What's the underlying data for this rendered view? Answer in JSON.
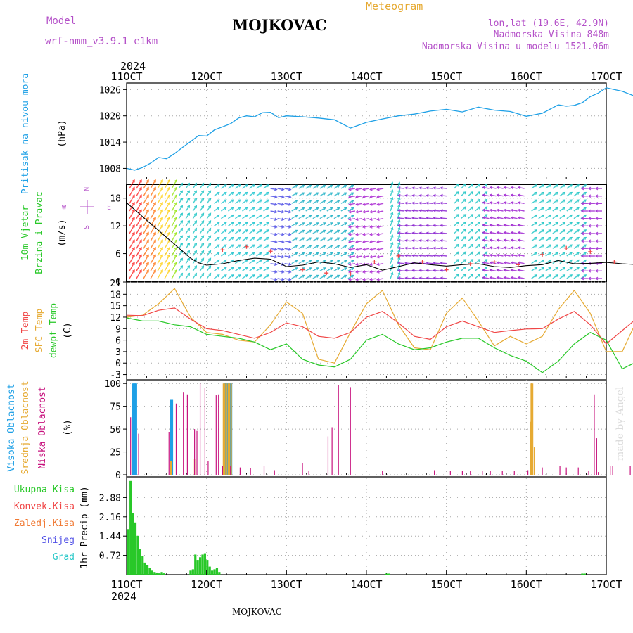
{
  "header": {
    "model_label": "Model",
    "model_name": "wrf-nmm_v3.9.1 e1km",
    "location": "MOJKOVAC",
    "meteogram": "Meteogram",
    "coords": "lon,lat (19.6E, 42.9N)",
    "elevation": "Nadmorska Visina 848m",
    "model_elevation": "Nadmorska Visina u modelu 1521.06m",
    "year_top": "2024",
    "year_bottom": "2024",
    "footer_location": "MOJKOVAC",
    "credit": "made by Angel"
  },
  "colors": {
    "pressure": "#1ea0e6",
    "temp2m": "#f04646",
    "sfc": "#e6aa32",
    "dew": "#28c828",
    "high_cloud": "#1ea0e6",
    "mid_cloud": "#e6aa32",
    "low_cloud": "#c8147f",
    "total_precip": "#28c828",
    "conv_precip": "#f04646",
    "frz_precip": "#f07832",
    "snow": "#5050e6",
    "hail": "#28c8c8",
    "compass": "#b450c8",
    "wind_speed_line": "#000000",
    "gust": "#f04646"
  },
  "chart_data": [
    {
      "id": "pressure",
      "type": "line",
      "ylabel_lines": [
        "Pritisak na nivou mora",
        "(hPa)"
      ],
      "x_categories": [
        "11OCT",
        "12OCT",
        "13OCT",
        "14OCT",
        "15OCT",
        "16OCT",
        "17OCT"
      ],
      "yticks": [
        1008,
        1014,
        1020,
        1026
      ],
      "ylim": [
        1005.5,
        1027.5
      ],
      "grid": true,
      "series": [
        {
          "x": [
            0,
            0.1,
            0.2,
            0.3,
            0.4,
            0.5,
            0.6,
            0.7,
            0.8,
            0.9,
            1.0,
            1.1,
            1.2,
            1.3,
            1.4,
            1.5,
            1.6,
            1.7,
            1.8,
            1.9,
            2.0,
            2.2,
            2.4,
            2.6,
            2.8,
            3.0,
            3.2,
            3.4,
            3.6,
            3.8,
            4.0,
            4.2,
            4.4,
            4.6,
            4.8,
            5.0,
            5.2,
            5.4,
            5.5,
            5.6,
            5.7,
            5.8,
            5.9,
            6.0,
            6.2,
            6.4,
            6.6,
            6.8,
            7.0
          ],
          "y": [
            1008,
            1007.6,
            1008.2,
            1009.2,
            1010.5,
            1010.2,
            1011.4,
            1012.8,
            1014.1,
            1015.5,
            1015.4,
            1016.8,
            1017.5,
            1018.2,
            1019.5,
            1020.0,
            1019.8,
            1020.7,
            1020.8,
            1019.6,
            1020.0,
            1019.8,
            1019.5,
            1019.1,
            1017.2,
            1018.5,
            1019.3,
            1020.0,
            1020.4,
            1021.1,
            1021.5,
            1020.9,
            1022.0,
            1021.3,
            1021.0,
            1019.9,
            1020.6,
            1022.5,
            1022.2,
            1022.4,
            1023.0,
            1024.4,
            1025.2,
            1026.4,
            1025.6,
            1024.2,
            1025.4,
            1025.5,
            1025.0
          ]
        }
      ]
    },
    {
      "id": "wind",
      "type": "line",
      "ylabel_lines": [
        "10m Vjetar",
        "Brzina i Pravac",
        "(m/s)"
      ],
      "compass": {
        "north": "N",
        "south": "S",
        "west": "W",
        "east": "E"
      },
      "yticks": [
        0,
        6,
        12,
        18
      ],
      "ylim": [
        0,
        21
      ],
      "grid": true,
      "speed": {
        "x": [
          0,
          0.1,
          0.2,
          0.3,
          0.4,
          0.5,
          0.6,
          0.7,
          0.8,
          0.9,
          1.0,
          1.2,
          1.4,
          1.6,
          1.8,
          2.0,
          2.2,
          2.4,
          2.6,
          2.8,
          3.0,
          3.2,
          3.4,
          3.6,
          3.8,
          4.0,
          4.2,
          4.4,
          4.6,
          4.8,
          5.0,
          5.2,
          5.4,
          5.6,
          5.8,
          6.0,
          6.2,
          6.4,
          6.6,
          6.8,
          7.0
        ],
        "y": [
          17,
          15.5,
          14,
          12.5,
          11,
          9.5,
          8,
          6.5,
          5,
          4,
          3.5,
          3.8,
          4.5,
          5.0,
          4.8,
          3.2,
          3.5,
          4.2,
          3.8,
          3.0,
          3.6,
          2.4,
          3.2,
          4.0,
          3.6,
          3.3,
          3.6,
          3.8,
          3.2,
          3.0,
          3.4,
          3.6,
          4.5,
          3.8,
          3.9,
          4.1,
          3.8,
          3.6,
          3.7,
          3.2,
          3.0
        ]
      },
      "gust": {
        "x": [
          1.2,
          1.5,
          1.8,
          2.2,
          2.5,
          2.8,
          3.1,
          3.4,
          3.7,
          4.0,
          4.3,
          4.6,
          4.9,
          5.2,
          5.5,
          5.8,
          6.1,
          6.4,
          6.7,
          7.0
        ],
        "y": [
          6.8,
          7.5,
          6.5,
          2.5,
          1.8,
          1.6,
          4.2,
          5.5,
          4.2,
          2.5,
          3.8,
          4.2,
          3.6,
          5.8,
          7.2,
          6.4,
          4.2,
          5.0,
          3.8,
          2.6
        ]
      }
    },
    {
      "id": "temperature",
      "type": "line",
      "ylabel_lines": [
        "2m Temp",
        "SFC Temp",
        "dewpt Temp",
        "(C)"
      ],
      "yticks": [
        -3,
        0,
        3,
        6,
        9,
        12,
        15,
        18,
        21
      ],
      "ylim": [
        -4,
        21
      ],
      "grid": true,
      "series": [
        {
          "name": "2m Temp",
          "x": [
            0,
            0.2,
            0.4,
            0.6,
            0.8,
            1.0,
            1.2,
            1.4,
            1.6,
            1.8,
            2.0,
            2.2,
            2.4,
            2.6,
            2.8,
            3.0,
            3.2,
            3.4,
            3.6,
            3.8,
            4.0,
            4.2,
            4.4,
            4.6,
            4.8,
            5.0,
            5.2,
            5.4,
            5.6,
            5.8,
            6.0,
            6.2,
            6.4,
            6.6,
            6.8,
            7.0
          ],
          "y": [
            12.5,
            12.4,
            13.8,
            14.4,
            11.5,
            9.0,
            8.5,
            7.5,
            6.5,
            8.0,
            10.5,
            9.5,
            7.0,
            6.5,
            8.0,
            12.0,
            13.5,
            10.5,
            7.0,
            6.2,
            9.5,
            11.0,
            9.5,
            8.0,
            8.5,
            8.9,
            9.0,
            11.5,
            13.5,
            10.0,
            5.0,
            8.5,
            12.0,
            13.0,
            8.5,
            7.5
          ]
        },
        {
          "name": "SFC Temp",
          "x": [
            0,
            0.2,
            0.4,
            0.6,
            0.8,
            1.0,
            1.2,
            1.4,
            1.6,
            1.8,
            2.0,
            2.2,
            2.4,
            2.6,
            2.8,
            3.0,
            3.2,
            3.4,
            3.6,
            3.8,
            4.0,
            4.2,
            4.4,
            4.6,
            4.8,
            5.0,
            5.2,
            5.4,
            5.6,
            5.8,
            6.0,
            6.2,
            6.4,
            6.6,
            6.8,
            7.0
          ],
          "y": [
            12,
            12.5,
            15.5,
            19.5,
            12.0,
            8.0,
            7.5,
            6.0,
            5.5,
            10.0,
            16.0,
            13.0,
            1.0,
            0,
            8.0,
            15.5,
            19.0,
            10.0,
            4.0,
            3.5,
            13.0,
            17.0,
            11.0,
            4.5,
            7.0,
            5.0,
            7.0,
            14.0,
            19.0,
            13.0,
            3.0,
            3.0,
            12.0,
            17.5,
            7.0,
            0.5
          ]
        },
        {
          "name": "dewpt Temp",
          "x": [
            0,
            0.2,
            0.4,
            0.6,
            0.8,
            1.0,
            1.2,
            1.4,
            1.6,
            1.8,
            2.0,
            2.2,
            2.4,
            2.6,
            2.8,
            3.0,
            3.2,
            3.4,
            3.6,
            3.8,
            4.0,
            4.2,
            4.4,
            4.6,
            4.8,
            5.0,
            5.2,
            5.4,
            5.6,
            5.8,
            6.0,
            6.2,
            6.4,
            6.6,
            6.8,
            7.0
          ],
          "y": [
            11.8,
            11.0,
            11.0,
            10.0,
            9.5,
            7.5,
            7.0,
            6.5,
            5.5,
            3.5,
            5.0,
            1.0,
            -0.5,
            -1.0,
            1.0,
            6.0,
            7.5,
            5.0,
            3.5,
            4.0,
            5.5,
            6.5,
            6.5,
            4.0,
            2.0,
            0.5,
            -2.5,
            0.5,
            5.0,
            8.0,
            6.0,
            -1.5,
            0.5,
            3.5,
            0.5,
            -2.5
          ]
        }
      ]
    },
    {
      "id": "cloud",
      "type": "bar",
      "ylabel_lines": [
        "Visoka Oblacnost",
        "Srednja Oblacnost",
        "Niska Oblacnost",
        "(%)"
      ],
      "yticks": [
        0,
        25,
        50,
        75,
        100
      ],
      "ylim": [
        0,
        104
      ],
      "grid": true,
      "series": [
        {
          "name": "Visoka Oblacnost",
          "x": [
            0.08,
            0.09,
            0.1,
            0.11,
            0.12,
            0.55,
            0.56,
            0.57,
            1.22,
            1.23,
            1.24,
            1.25,
            1.26,
            1.27,
            1.28,
            1.29,
            1.3,
            1.31
          ],
          "values": [
            100,
            100,
            100,
            100,
            100,
            82,
            82,
            82,
            100,
            100,
            100,
            100,
            100,
            100,
            100,
            100,
            100,
            100
          ]
        },
        {
          "name": "Srednja Oblacnost",
          "x": [
            0.55,
            0.56,
            0.85,
            1.21,
            1.23,
            1.25,
            1.27,
            1.29,
            1.31,
            5.05,
            5.06,
            5.07,
            5.08,
            5.1
          ],
          "values": [
            15,
            15,
            17,
            100,
            100,
            100,
            100,
            100,
            100,
            58,
            100,
            100,
            100,
            30
          ]
        },
        {
          "name": "Niska Oblacnost",
          "x": [
            0.05,
            0.15,
            0.53,
            0.62,
            0.71,
            0.76,
            0.85,
            0.88,
            0.92,
            0.98,
            1.02,
            1.12,
            1.15,
            1.2,
            1.3,
            1.42,
            1.55,
            1.72,
            1.85,
            2.2,
            2.28,
            2.52,
            2.57,
            2.65,
            2.8,
            3.2,
            3.85,
            4.05,
            4.2,
            4.3,
            4.45,
            4.55,
            4.7,
            4.85,
            5.02,
            5.2,
            5.42,
            5.5,
            5.65,
            5.78,
            5.85,
            5.88,
            5.9,
            6.05,
            6.08,
            6.3,
            6.38,
            6.5,
            6.55,
            6.65,
            6.82,
            6.9
          ],
          "values": [
            63,
            45,
            47,
            78,
            90,
            88,
            50,
            48,
            100,
            95,
            15,
            87,
            88,
            10,
            10,
            8,
            7,
            10,
            5,
            13,
            4,
            42,
            52,
            98,
            96,
            4,
            5,
            4,
            4,
            4,
            4,
            4,
            4,
            4,
            5,
            8,
            10,
            8,
            8,
            4,
            88,
            40,
            3,
            10,
            10,
            10,
            10,
            10,
            10,
            10,
            5,
            5
          ]
        }
      ]
    },
    {
      "id": "precip",
      "type": "bar",
      "ylabel_lines": [
        "1hr Precip (mm)"
      ],
      "legend": [
        "Ukupna Kisa",
        "Konvek.Kisa",
        "Zaledj.Kisa",
        "Snijeg",
        "Grad"
      ],
      "yticks": [
        0.72,
        1.44,
        2.16,
        2.88
      ],
      "ylim": [
        0,
        3.6
      ],
      "grid": true,
      "series": [
        {
          "name": "Ukupna Kisa",
          "x": [
            0.02,
            0.05,
            0.08,
            0.11,
            0.14,
            0.17,
            0.2,
            0.23,
            0.26,
            0.29,
            0.32,
            0.35,
            0.38,
            0.41,
            0.44,
            0.47,
            0.8,
            0.83,
            0.86,
            0.89,
            0.92,
            0.95,
            0.98,
            1.01,
            1.04,
            1.07,
            1.1,
            1.13,
            1.16,
            3.25,
            3.28,
            5.7,
            5.73
          ],
          "values": [
            1.7,
            3.5,
            2.3,
            1.95,
            1.45,
            0.95,
            0.7,
            0.45,
            0.35,
            0.25,
            0.15,
            0.1,
            0.08,
            0.05,
            0.1,
            0.05,
            0.15,
            0.2,
            0.75,
            0.55,
            0.65,
            0.75,
            0.8,
            0.55,
            0.3,
            0.15,
            0.2,
            0.25,
            0.1,
            0.04,
            0.04,
            0.04,
            0.04
          ]
        }
      ]
    }
  ]
}
